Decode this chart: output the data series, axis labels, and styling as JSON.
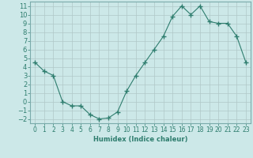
{
  "x": [
    0,
    1,
    2,
    3,
    4,
    5,
    6,
    7,
    8,
    9,
    10,
    11,
    12,
    13,
    14,
    15,
    16,
    17,
    18,
    19,
    20,
    21,
    22,
    23
  ],
  "y": [
    4.5,
    3.5,
    3.0,
    0.0,
    -0.5,
    -0.5,
    -1.5,
    -2.0,
    -1.9,
    -1.2,
    1.2,
    3.0,
    4.5,
    6.0,
    7.5,
    9.8,
    11.0,
    10.0,
    11.0,
    9.2,
    9.0,
    9.0,
    7.5,
    4.5
  ],
  "xlabel": "Humidex (Indice chaleur)",
  "xlim": [
    -0.5,
    23.5
  ],
  "ylim": [
    -2.5,
    11.5
  ],
  "yticks": [
    -2,
    -1,
    0,
    1,
    2,
    3,
    4,
    5,
    6,
    7,
    8,
    9,
    10,
    11
  ],
  "xticks": [
    0,
    1,
    2,
    3,
    4,
    5,
    6,
    7,
    8,
    9,
    10,
    11,
    12,
    13,
    14,
    15,
    16,
    17,
    18,
    19,
    20,
    21,
    22,
    23
  ],
  "line_color": "#2e7d6e",
  "marker": "+",
  "bg_color": "#cce8e8",
  "grid_color": "#b0c8c8",
  "font_color": "#2e7d6e",
  "tick_color": "#2e7d6e",
  "spine_color": "#7aabab"
}
